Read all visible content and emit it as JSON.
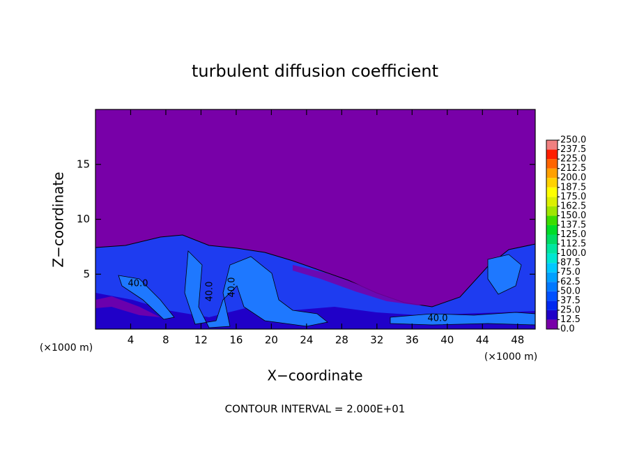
{
  "chart_data": {
    "type": "contour",
    "title": "turbulent diffusion coefficient",
    "xlabel": "X−coordinate",
    "ylabel": "Z−coordinate",
    "x_unit_left": "(×1000 m)",
    "x_unit_right": "(×1000 m)",
    "footer": "CONTOUR INTERVAL = 2.000E+01",
    "xlim": [
      0,
      50
    ],
    "ylim": [
      0,
      20
    ],
    "xticks": [
      4,
      8,
      12,
      16,
      20,
      24,
      28,
      32,
      36,
      40,
      44,
      48
    ],
    "yticks": [
      5,
      10,
      15
    ],
    "contour_labels": [
      "40.0",
      "40.0",
      "40.0",
      "40.0"
    ],
    "colorbar": {
      "levels": [
        {
          "value": 0,
          "label": "0.0"
        },
        {
          "value": 12.5,
          "label": "12.5"
        },
        {
          "value": 25,
          "label": "25.0"
        },
        {
          "value": 37.5,
          "label": "37.5"
        },
        {
          "value": 50,
          "label": "50.0"
        },
        {
          "value": 62.5,
          "label": "62.5"
        },
        {
          "value": 75,
          "label": "75.0"
        },
        {
          "value": 87.5,
          "label": "87.5"
        },
        {
          "value": 100,
          "label": "100.0"
        },
        {
          "value": 112.5,
          "label": "112.5"
        },
        {
          "value": 125,
          "label": "125.0"
        },
        {
          "value": 137.5,
          "label": "137.5"
        },
        {
          "value": 150,
          "label": "150.0"
        },
        {
          "value": 162.5,
          "label": "162.5"
        },
        {
          "value": 175,
          "label": "175.0"
        },
        {
          "value": 187.5,
          "label": "187.5"
        },
        {
          "value": 200,
          "label": "200.0"
        },
        {
          "value": 212.5,
          "label": "212.5"
        },
        {
          "value": 225,
          "label": "225.0"
        },
        {
          "value": 237.5,
          "label": "237.5"
        },
        {
          "value": 250,
          "label": "250.0"
        }
      ],
      "colors": [
        "#7800a8",
        "#2000c8",
        "#0028f0",
        "#0050ff",
        "#0078ff",
        "#00a0ff",
        "#00c8ff",
        "#00e6d2",
        "#00e6a0",
        "#00dc64",
        "#00dc28",
        "#3cdc00",
        "#a0e600",
        "#dcf000",
        "#ffff00",
        "#ffd200",
        "#ffa000",
        "#ff6400",
        "#ff1e00",
        "#f08080"
      ]
    }
  }
}
